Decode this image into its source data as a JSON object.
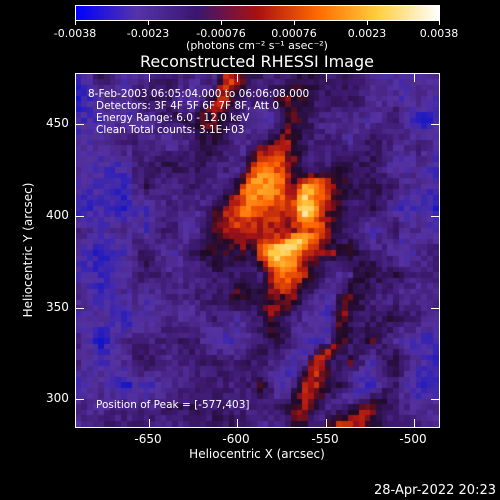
{
  "colorbar": {
    "tick_labels": [
      "-0.0038",
      "-0.0023",
      "-0.00076",
      "0.00076",
      "0.0023",
      "0.0038"
    ],
    "units": "(photons cm⁻² s⁻¹ asec⁻²)"
  },
  "title": "Reconstructed RHESSI Image",
  "annotations": {
    "time_range": "8-Feb-2003 06:05:04.000 to 06:06:08.000",
    "detectors": "Detectors: 3F 4F 5F 6F 7F 8F, Att 0",
    "energy": "Energy Range: 6.0 - 12.0 keV",
    "method": "Clean      Total counts: 3.1E+03",
    "peak": "Position of Peak = [-577,403]"
  },
  "axes": {
    "xlabel": "Heliocentric X (arcsec)",
    "ylabel": "Heliocentric Y (arcsec)",
    "x_ticks": [
      "-650",
      "-600",
      "-550",
      "-500"
    ],
    "y_ticks": [
      "450",
      "400",
      "350",
      "300"
    ],
    "x_range": [
      -690,
      -495
    ],
    "y_range": [
      285,
      475
    ]
  },
  "timestamp": "28-Apr-2022 20:23",
  "colormap_colors": [
    "#0000ff",
    "#5533aa",
    "#3a1670",
    "#aa1010",
    "#ff6a00",
    "#ffd040",
    "#ffffff"
  ]
}
